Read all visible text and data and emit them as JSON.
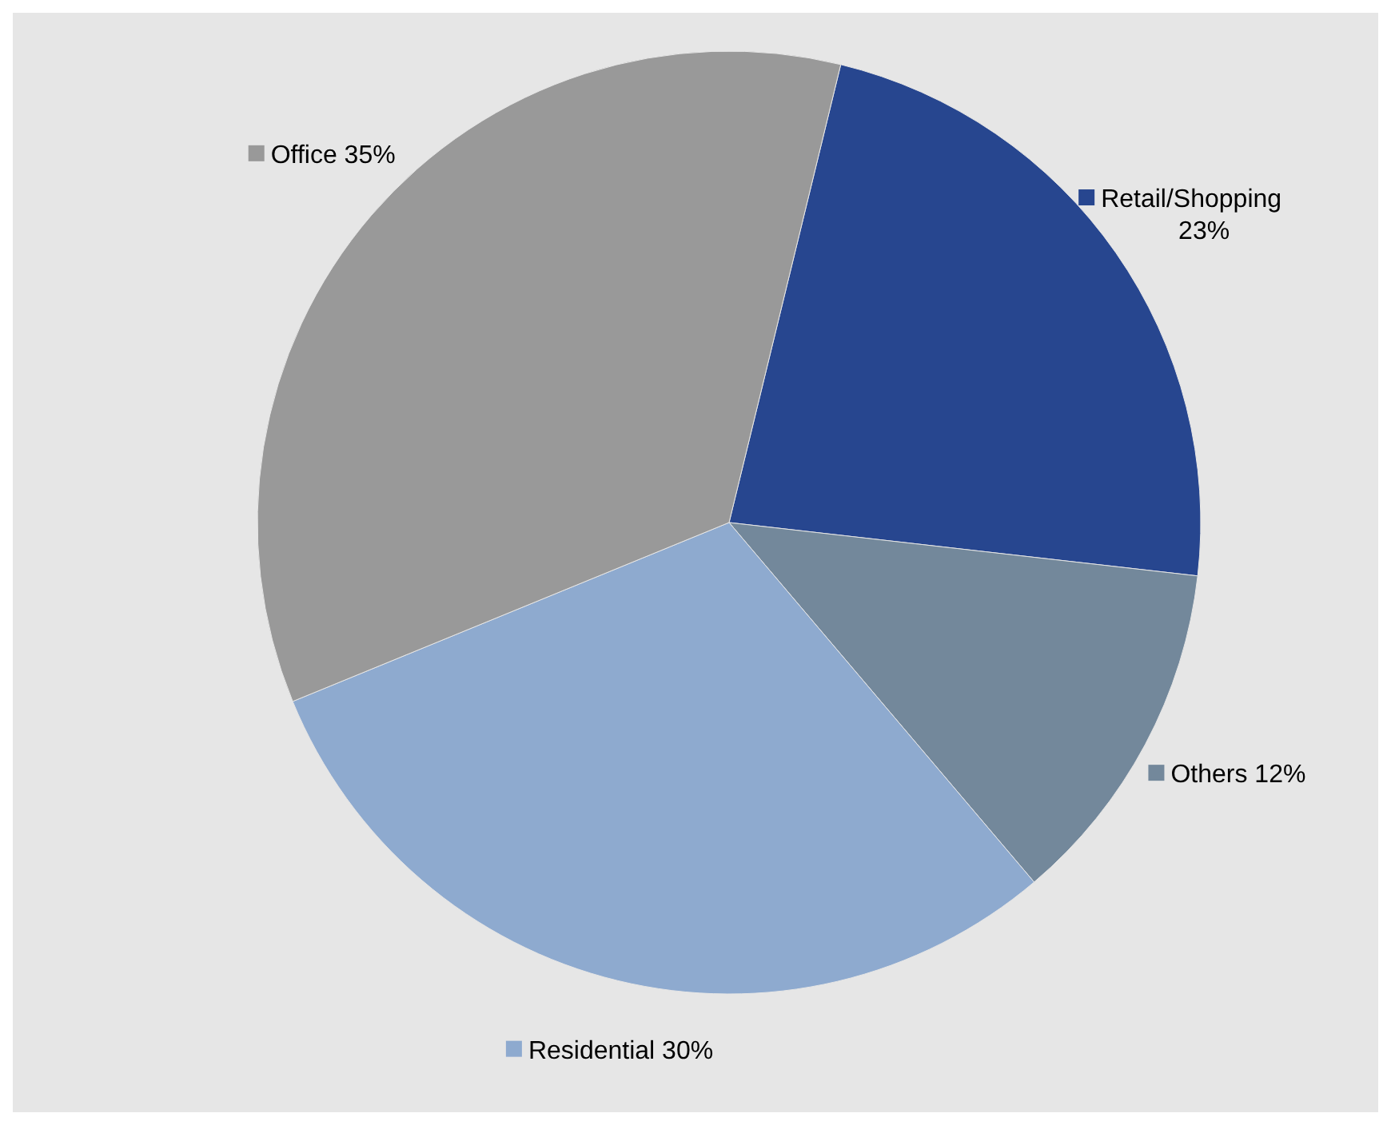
{
  "chart_data": {
    "type": "pie",
    "categories": [
      "Retail/Shopping",
      "Others",
      "Residential",
      "Office"
    ],
    "values": [
      23,
      12,
      30,
      35
    ],
    "value_labels": [
      "23%",
      "12%",
      "30%",
      "35%"
    ],
    "colors": [
      "#27468f",
      "#73889b",
      "#8eaacf",
      "#999999"
    ],
    "legend": "right"
  }
}
